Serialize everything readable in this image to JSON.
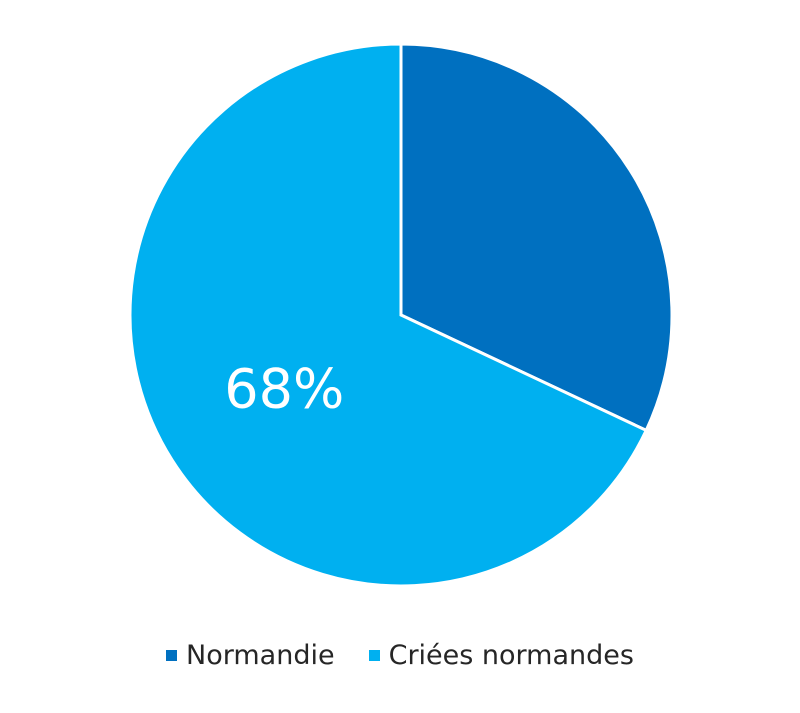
{
  "chart_data": {
    "type": "pie",
    "title": "",
    "slices": [
      {
        "label": "Normandie",
        "value": 32,
        "color": "#0070c0",
        "data_label": ""
      },
      {
        "label": "Criées normandes",
        "value": 68,
        "color": "#00b0f0",
        "data_label": "68%"
      }
    ],
    "legend_position": "bottom"
  }
}
